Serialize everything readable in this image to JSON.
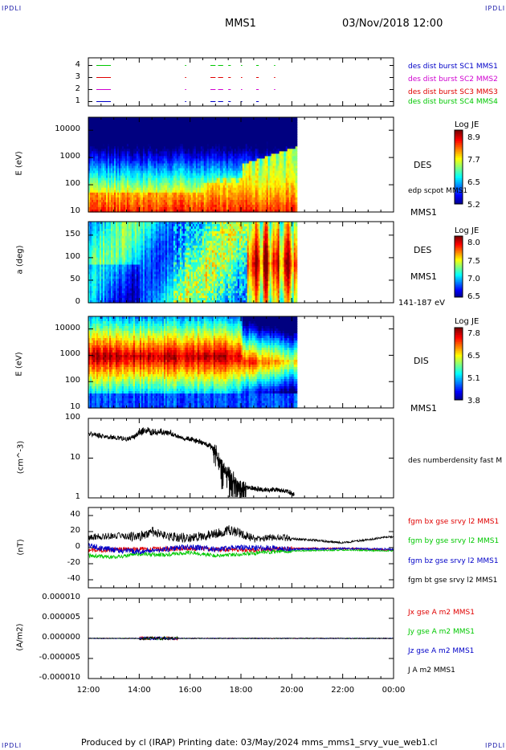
{
  "corners": {
    "tl": "IPDLI",
    "tr": "IPDLI",
    "bl": "IPDLI",
    "br": "IPDLI"
  },
  "header": {
    "mission": "MMS1",
    "datetime": "03/Nov/2018 12:00"
  },
  "footer": "Produced by cl (IRAP)   Printing date: 03/May/2024   mms_mms1_srvy_vue_web1.cl",
  "colors": {
    "blue": "#0000c8",
    "magenta": "#d000d0",
    "red": "#e00000",
    "green": "#00c800",
    "black": "#000000"
  },
  "chart_data": [
    {
      "type": "scatter",
      "panel": "burst-availability",
      "y_ticks": [
        "4",
        "3",
        "2",
        "1"
      ],
      "labels": [
        {
          "text": "des dist burst SC1 MMS1",
          "color": "#0000c8"
        },
        {
          "text": "des dist burst SC2 MMS2",
          "color": "#d000d0"
        },
        {
          "text": "des dist burst SC3 MMS3",
          "color": "#e00000"
        },
        {
          "text": "des dist burst SC4 MMS4",
          "color": "#00c800"
        }
      ],
      "series": [
        {
          "level": 4,
          "color": "#00c800",
          "segments": [
            [
              12.3,
              12.8
            ],
            [
              15.8,
              15.85
            ],
            [
              16.8,
              17.0
            ],
            [
              17.1,
              17.3
            ],
            [
              17.5,
              17.6
            ],
            [
              18.0,
              18.05
            ],
            [
              18.6,
              18.7
            ],
            [
              19.3,
              19.35
            ]
          ]
        },
        {
          "level": 3,
          "color": "#e00000",
          "segments": [
            [
              12.3,
              12.8
            ],
            [
              15.8,
              15.85
            ],
            [
              16.8,
              17.0
            ],
            [
              17.1,
              17.3
            ],
            [
              17.5,
              17.6
            ],
            [
              18.0,
              18.05
            ],
            [
              18.6,
              18.7
            ],
            [
              19.3,
              19.35
            ]
          ]
        },
        {
          "level": 2,
          "color": "#d000d0",
          "segments": [
            [
              12.3,
              12.8
            ],
            [
              15.8,
              15.85
            ],
            [
              16.8,
              17.0
            ],
            [
              17.1,
              17.3
            ],
            [
              17.5,
              17.6
            ],
            [
              18.0,
              18.05
            ],
            [
              18.6,
              18.7
            ],
            [
              19.3,
              19.35
            ]
          ]
        },
        {
          "level": 1,
          "color": "#0000c8",
          "segments": [
            [
              12.3,
              12.8
            ],
            [
              15.8,
              15.85
            ],
            [
              16.8,
              17.0
            ],
            [
              17.1,
              17.3
            ],
            [
              17.5,
              17.6
            ],
            [
              18.0,
              18.05
            ],
            [
              18.6,
              18.7
            ]
          ]
        }
      ]
    },
    {
      "type": "heatmap",
      "panel": "des-energy",
      "ylabel": "E (eV)",
      "y_ticks": [
        "10000",
        "1000",
        "100",
        "10"
      ],
      "ylim": [
        10,
        30000
      ],
      "scale": "log",
      "label": "DES",
      "sublabel": "edp scpot MMS1",
      "instrument": "MMS1",
      "colorbar": {
        "title": "Log JE",
        "ticks": [
          "8.9",
          "7.7",
          "6.5",
          "5.2"
        ],
        "range": [
          5.2,
          8.9
        ]
      },
      "data_end_time": 20.2
    },
    {
      "type": "heatmap",
      "panel": "des-pitch-angle",
      "ylabel": "a (deg)",
      "y_ticks": [
        "150",
        "100",
        "50",
        "0"
      ],
      "ylim": [
        0,
        180
      ],
      "label": "DES",
      "instrument": "MMS1",
      "energy_range": "141-187 eV",
      "colorbar": {
        "title": "Log JE",
        "ticks": [
          "8.0",
          "7.5",
          "7.0",
          "6.5"
        ],
        "range": [
          6.5,
          8.0
        ]
      },
      "data_end_time": 20.2
    },
    {
      "type": "heatmap",
      "panel": "dis-energy",
      "ylabel": "E (eV)",
      "y_ticks": [
        "10000",
        "1000",
        "100",
        "10"
      ],
      "ylim": [
        10,
        30000
      ],
      "scale": "log",
      "label": "DIS",
      "instrument": "MMS1",
      "colorbar": {
        "title": "Log JE",
        "ticks": [
          "7.8",
          "6.5",
          "5.1",
          "3.8"
        ],
        "range": [
          3.8,
          7.8
        ]
      },
      "data_end_time": 20.2
    },
    {
      "type": "line",
      "panel": "density",
      "ylabel": "(cm^-3)",
      "y_ticks": [
        "100",
        "10",
        "1"
      ],
      "ylim": [
        1,
        100
      ],
      "scale": "log",
      "series": [
        {
          "name": "des numberdensity fast M",
          "color": "#000000",
          "points": [
            [
              12.0,
              42
            ],
            [
              12.5,
              36
            ],
            [
              13.0,
              33
            ],
            [
              13.5,
              30
            ],
            [
              13.8,
              34
            ],
            [
              14.0,
              45
            ],
            [
              14.3,
              52
            ],
            [
              14.6,
              44
            ],
            [
              15.0,
              46
            ],
            [
              15.3,
              40
            ],
            [
              15.6,
              34
            ],
            [
              15.9,
              31
            ],
            [
              16.2,
              28
            ],
            [
              16.5,
              24
            ],
            [
              16.8,
              20
            ],
            [
              17.0,
              14
            ],
            [
              17.2,
              8
            ],
            [
              17.4,
              5
            ],
            [
              17.6,
              3.5
            ],
            [
              17.8,
              2.5
            ],
            [
              18.0,
              2.0
            ],
            [
              18.3,
              1.8
            ],
            [
              18.6,
              1.7
            ],
            [
              19.0,
              1.6
            ],
            [
              19.3,
              1.6
            ],
            [
              19.6,
              1.55
            ],
            [
              19.9,
              1.4
            ],
            [
              20.1,
              1.2
            ]
          ]
        }
      ]
    },
    {
      "type": "line",
      "panel": "magnetic-field",
      "ylabel": "(nT)",
      "y_ticks": [
        "40",
        "20",
        "0",
        "-20",
        "-40"
      ],
      "ylim": [
        -50,
        50
      ],
      "series": [
        {
          "name": "fgm bx gse srvy l2 MMS1",
          "color": "#e00000",
          "points": [
            [
              12.0,
              -3
            ],
            [
              14.0,
              -2
            ],
            [
              16.0,
              -1
            ],
            [
              18.0,
              -3
            ],
            [
              20.0,
              -1
            ],
            [
              22.0,
              -1
            ],
            [
              24.0,
              -3
            ]
          ]
        },
        {
          "name": "fgm by gse srvy l2 MMS1",
          "color": "#00c800",
          "points": [
            [
              12.0,
              -10
            ],
            [
              13.0,
              -12
            ],
            [
              14.0,
              -8
            ],
            [
              15.0,
              -9
            ],
            [
              16.0,
              -6
            ],
            [
              17.0,
              -10
            ],
            [
              18.0,
              -8
            ],
            [
              19.0,
              -6
            ],
            [
              20.0,
              -4
            ],
            [
              22.0,
              -3
            ],
            [
              24.0,
              -4
            ]
          ]
        },
        {
          "name": "fgm bz gse srvy l2 MMS1",
          "color": "#0000c8",
          "points": [
            [
              12.0,
              2
            ],
            [
              13.0,
              -3
            ],
            [
              14.0,
              -5
            ],
            [
              15.0,
              -2
            ],
            [
              16.0,
              1
            ],
            [
              17.0,
              -2
            ],
            [
              18.0,
              0
            ],
            [
              19.0,
              0
            ],
            [
              20.0,
              -2
            ],
            [
              22.0,
              -1
            ],
            [
              24.0,
              -2
            ]
          ]
        },
        {
          "name": "fgm bt gse srvy l2 MMS1",
          "color": "#000000",
          "points": [
            [
              12.0,
              13
            ],
            [
              13.0,
              15
            ],
            [
              14.0,
              14
            ],
            [
              14.5,
              20
            ],
            [
              15.0,
              14
            ],
            [
              16.0,
              12
            ],
            [
              17.0,
              17
            ],
            [
              17.5,
              22
            ],
            [
              18.0,
              18
            ],
            [
              18.5,
              10
            ],
            [
              19.0,
              12
            ],
            [
              19.5,
              13
            ],
            [
              20.0,
              11
            ],
            [
              21.0,
              9
            ],
            [
              22.0,
              6
            ],
            [
              23.0,
              10
            ],
            [
              23.5,
              12
            ],
            [
              24.0,
              14
            ]
          ]
        }
      ]
    },
    {
      "type": "line",
      "panel": "current-density",
      "ylabel": "(A/m2)",
      "y_ticks": [
        "0.000010",
        "0.000005",
        "0.000000",
        "-0.000005",
        "-0.000010"
      ],
      "ylim": [
        -1e-05,
        1e-05
      ],
      "series": [
        {
          "name": "Jx gse A m2 MMS1",
          "color": "#e00000",
          "points": [
            [
              12.0,
              0
            ],
            [
              24.0,
              0
            ]
          ]
        },
        {
          "name": "Jy gse A m2 MMS1",
          "color": "#00c800",
          "points": [
            [
              12.0,
              0
            ],
            [
              24.0,
              0
            ]
          ]
        },
        {
          "name": "Jz gse A m2 MMS1",
          "color": "#0000c8",
          "points": [
            [
              12.0,
              0
            ],
            [
              24.0,
              0
            ]
          ]
        },
        {
          "name": "J A m2 MMS1",
          "color": "#000000",
          "points": [
            [
              12.0,
              0
            ],
            [
              24.0,
              0
            ]
          ]
        }
      ]
    }
  ],
  "x_axis": {
    "ticks": [
      "12:00",
      "14:00",
      "16:00",
      "18:00",
      "20:00",
      "22:00",
      "00:00"
    ],
    "range_hours": [
      12,
      24
    ]
  }
}
